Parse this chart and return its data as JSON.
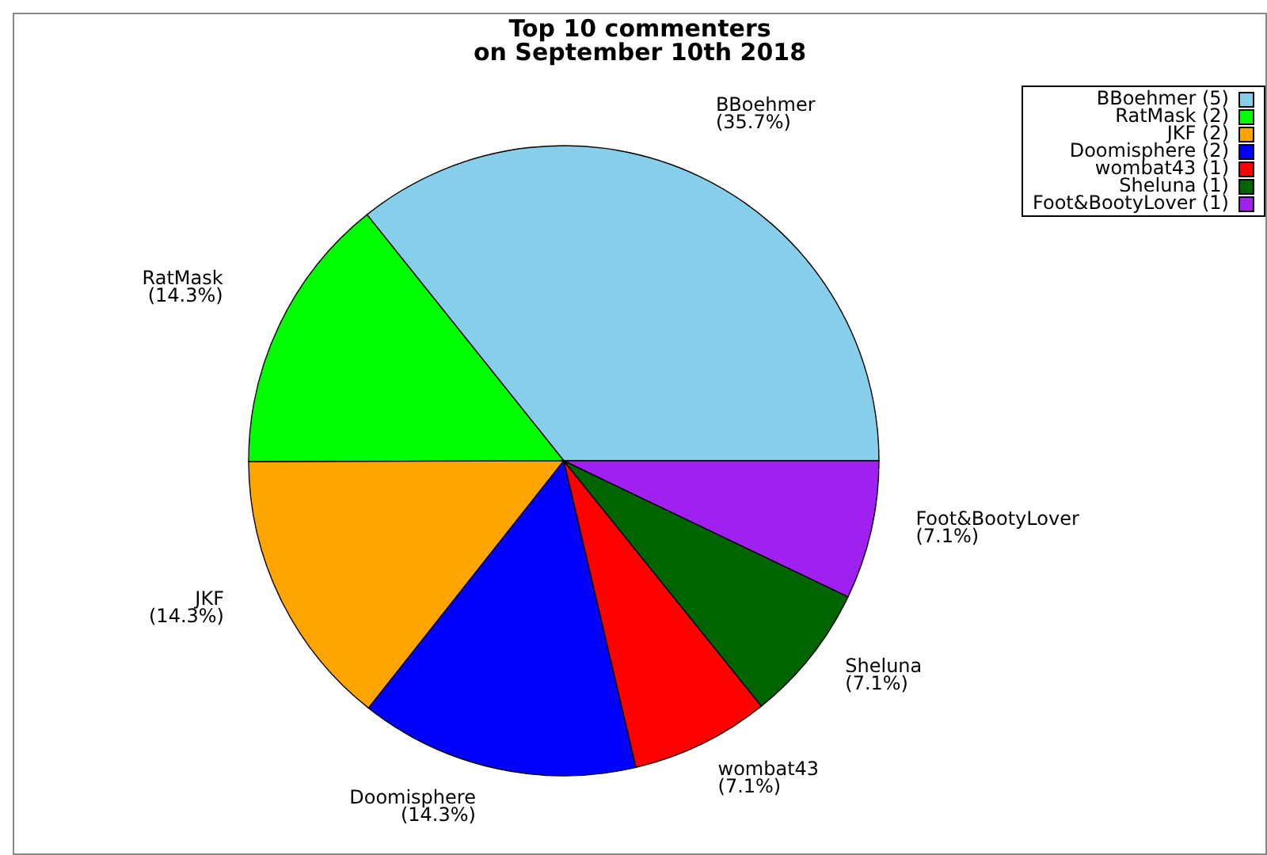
{
  "chart_data": {
    "type": "pie",
    "title": "Top 10 commenters\non September 10th 2018",
    "categories": [
      "BBoehmer (5)",
      "RatMask (2)",
      "JKF (2)",
      "Doomisphere (2)",
      "wombat43 (1)",
      "Sheluna (1)",
      "Foot&BootyLover (1)"
    ],
    "values": [
      35.7,
      14.3,
      14.3,
      14.3,
      7.1,
      7.1,
      7.1
    ],
    "value_labels": [
      "BBoehmer\n(35.7%)",
      "RatMask\n(14.3%)",
      "JKF\n(14.3%)",
      "Doomisphere\n(14.3%)",
      "wombat43\n(7.1%)",
      "Sheluna\n(7.1%)",
      "Foot&BootyLover\n(7.1%)"
    ],
    "colors": [
      "#87ceeb",
      "#00ff00",
      "#ffa500",
      "#0000ff",
      "#ff0000",
      "#006400",
      "#a020f0"
    ],
    "legend": "top right"
  }
}
